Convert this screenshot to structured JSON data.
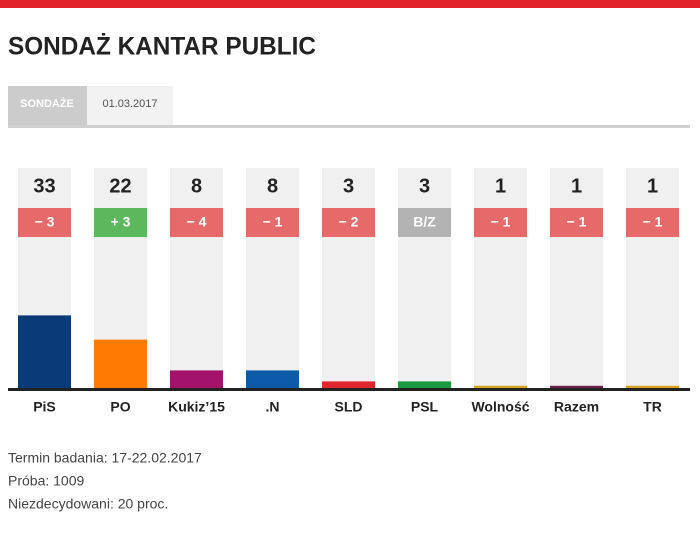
{
  "chart_data": {
    "type": "bar",
    "title": "SONDAŻ KANTAR PUBLIC",
    "tabs": [
      "SONDAŻE",
      "01.03.2017"
    ],
    "categories": [
      "PiS",
      "PO",
      "Kukiz’15",
      ".N",
      "SLD",
      "PSL",
      "Wolność",
      "Razem",
      "TR"
    ],
    "values": [
      33,
      22,
      8,
      8,
      3,
      3,
      1,
      1,
      1
    ],
    "colors": [
      "#0b3a78",
      "#ff7a00",
      "#a3136c",
      "#0d5aa8",
      "#e1262d",
      "#1c9a40",
      "#d9a520",
      "#6b2148",
      "#dda020"
    ],
    "changes": [
      "− 3",
      "+ 3",
      "− 4",
      "− 1",
      "− 2",
      "B/Z",
      "− 1",
      "− 1",
      "− 1"
    ],
    "change_colors": [
      "#e66a6a",
      "#5cb85c",
      "#e66a6a",
      "#e66a6a",
      "#e66a6a",
      "#b3b3b3",
      "#e66a6a",
      "#e66a6a",
      "#e66a6a"
    ],
    "ylim": [
      0,
      100
    ],
    "notes": [
      "Termin badania: 17-22.02.2017",
      "Próba: 1009",
      "Niezdecydowani: 20 proc."
    ]
  }
}
